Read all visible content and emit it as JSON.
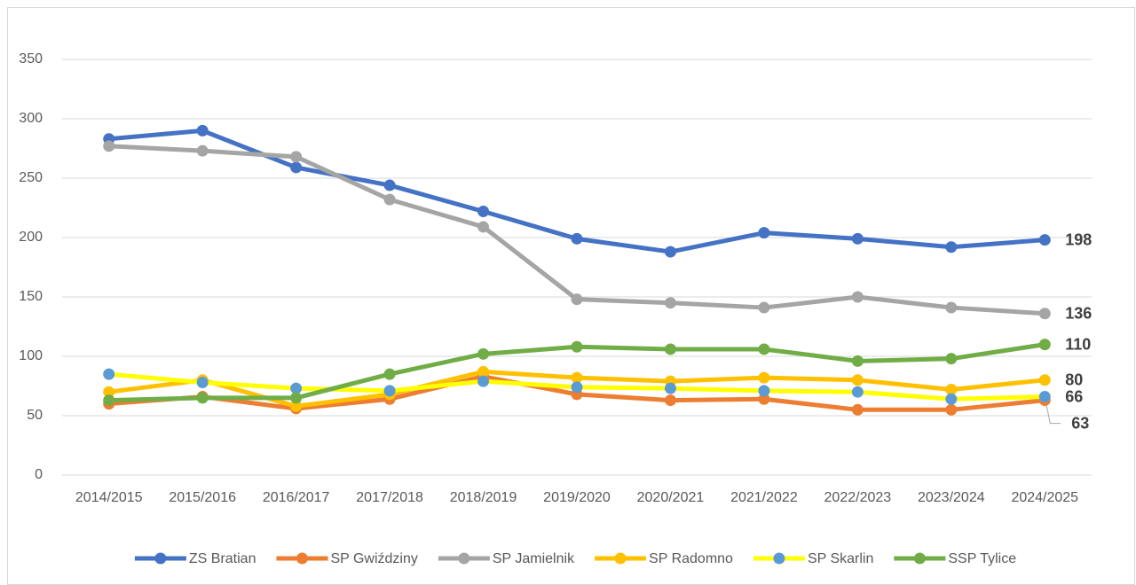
{
  "chart_data": {
    "type": "line",
    "categories": [
      "2014/2015",
      "2015/2016",
      "2016/2017",
      "2017/2018",
      "2018/2019",
      "2019/2020",
      "2020/2021",
      "2021/2022",
      "2022/2023",
      "2023/2024",
      "2024/2025"
    ],
    "series": [
      {
        "name": "ZS Bratian",
        "color": "#4472c4",
        "values": [
          283,
          290,
          259,
          244,
          222,
          199,
          188,
          204,
          199,
          192,
          198
        ]
      },
      {
        "name": "SP Gwiździny",
        "color": "#ed7d31",
        "values": [
          60,
          66,
          56,
          64,
          83,
          68,
          63,
          64,
          55,
          55,
          63
        ]
      },
      {
        "name": "SP Jamielnik",
        "color": "#a5a5a5",
        "values": [
          277,
          273,
          268,
          232,
          209,
          148,
          145,
          141,
          150,
          141,
          136
        ]
      },
      {
        "name": "SP Radomno",
        "color": "#ffc000",
        "values": [
          70,
          80,
          58,
          68,
          87,
          82,
          79,
          82,
          80,
          72,
          80
        ]
      },
      {
        "name": "SP Skarlin",
        "color": "#ffff00",
        "marker_color": "#5b9bd5",
        "values": [
          85,
          78,
          73,
          71,
          79,
          74,
          73,
          71,
          70,
          64,
          66
        ]
      },
      {
        "name": "SSP Tylice",
        "color": "#70ad47",
        "values": [
          63,
          65,
          65,
          85,
          102,
          108,
          106,
          106,
          96,
          98,
          110
        ]
      }
    ],
    "ylim": [
      0,
      350
    ],
    "yticks": [
      0,
      50,
      100,
      150,
      200,
      250,
      300,
      350
    ],
    "grid": true,
    "legend": "bottom"
  }
}
